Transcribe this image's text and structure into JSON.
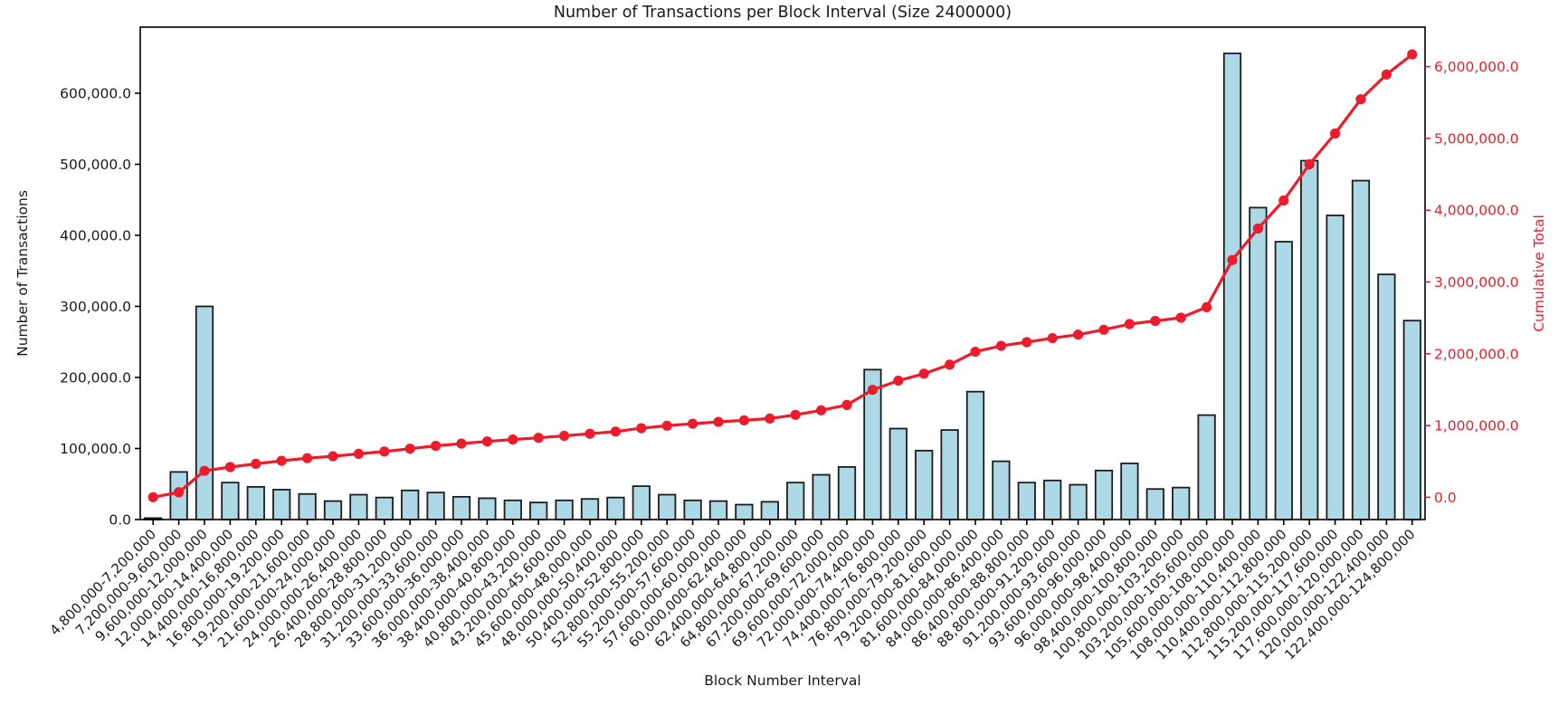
{
  "chart_data": {
    "type": "bar",
    "title": "Number of Transactions per Block Interval (Size 2400000)",
    "xlabel": "Block Number Interval",
    "ylabel_left": "Number of Transactions",
    "ylabel_right": "Cumulative Total",
    "legend_position": "none",
    "grid": false,
    "categories": [
      "4,800,000-7,200,000",
      "7,200,000-9,600,000",
      "9,600,000-12,000,000",
      "12,000,000-14,400,000",
      "14,400,000-16,800,000",
      "16,800,000-19,200,000",
      "19,200,000-21,600,000",
      "21,600,000-24,000,000",
      "24,000,000-26,400,000",
      "26,400,000-28,800,000",
      "28,800,000-31,200,000",
      "31,200,000-33,600,000",
      "33,600,000-36,000,000",
      "36,000,000-38,400,000",
      "38,400,000-40,800,000",
      "40,800,000-43,200,000",
      "43,200,000-45,600,000",
      "45,600,000-48,000,000",
      "48,000,000-50,400,000",
      "50,400,000-52,800,000",
      "52,800,000-55,200,000",
      "55,200,000-57,600,000",
      "57,600,000-60,000,000",
      "60,000,000-62,400,000",
      "62,400,000-64,800,000",
      "64,800,000-67,200,000",
      "67,200,000-69,600,000",
      "69,600,000-72,000,000",
      "72,000,000-74,400,000",
      "74,400,000-76,800,000",
      "76,800,000-79,200,000",
      "79,200,000-81,600,000",
      "81,600,000-84,000,000",
      "84,000,000-86,400,000",
      "86,400,000-88,800,000",
      "88,800,000-91,200,000",
      "91,200,000-93,600,000",
      "93,600,000-96,000,000",
      "96,000,000-98,400,000",
      "98,400,000-100,800,000",
      "100,800,000-103,200,000",
      "103,200,000-105,600,000",
      "105,600,000-108,000,000",
      "108,000,000-110,400,000",
      "110,400,000-112,800,000",
      "112,800,000-115,200,000",
      "115,200,000-117,600,000",
      "117,600,000-120,000,000",
      "120,000,000-122,400,000",
      "122,400,000-124,800,000"
    ],
    "series": [
      {
        "name": "Number of Transactions",
        "type": "bar",
        "axis": "left",
        "values": [
          2000,
          67000,
          300000,
          52000,
          46000,
          42000,
          36000,
          26000,
          35000,
          31000,
          41000,
          38000,
          32000,
          30000,
          27000,
          24000,
          27000,
          29000,
          31000,
          47000,
          35000,
          27000,
          26000,
          21000,
          25000,
          52000,
          63000,
          74000,
          211000,
          128000,
          97000,
          126000,
          180000,
          82000,
          52000,
          55000,
          49000,
          69000,
          79000,
          43000,
          45000,
          147000,
          656000,
          439000,
          391000,
          505000,
          428000,
          477000,
          345000,
          280000
        ]
      },
      {
        "name": "Cumulative Total",
        "type": "line",
        "axis": "right",
        "values": [
          2000,
          69000,
          369000,
          421000,
          467000,
          509000,
          545000,
          571000,
          606000,
          637000,
          678000,
          716000,
          748000,
          778000,
          805000,
          829000,
          856000,
          885000,
          916000,
          963000,
          998000,
          1025000,
          1051000,
          1072000,
          1097000,
          1149000,
          1212000,
          1286000,
          1497000,
          1625000,
          1722000,
          1848000,
          2028000,
          2110000,
          2162000,
          2217000,
          2266000,
          2335000,
          2414000,
          2457000,
          2502000,
          2649000,
          3305000,
          3744000,
          4135000,
          4640000,
          5068000,
          5545000,
          5890000,
          6170000
        ]
      }
    ],
    "left_axis": {
      "tick_labels": [
        "0.0",
        "100,000.0",
        "200,000.0",
        "300,000.0",
        "400,000.0",
        "500,000.0",
        "600,000.0"
      ],
      "min": 0,
      "max": 693000
    },
    "right_axis": {
      "tick_labels": [
        "0.0",
        "1,000,000.0",
        "2,000,000.0",
        "3,000,000.0",
        "4,000,000.0",
        "5,000,000.0",
        "6,000,000.0"
      ],
      "min": -310000,
      "max": 6550000
    },
    "x_tick_rotation": 45,
    "colors": {
      "bar_fill": "#add8e6",
      "bar_edge": "#1c1c1c",
      "line": "#ed1c2c",
      "right_axis_text": "#ed1c2c",
      "axis_text": "#1a1a1a",
      "frame": "#000000",
      "background": "#ffffff"
    }
  }
}
